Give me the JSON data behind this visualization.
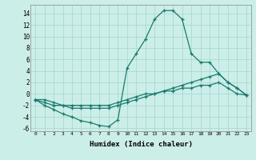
{
  "xlabel": "Humidex (Indice chaleur)",
  "bg_color": "#cceee8",
  "grid_color": "#aad8d4",
  "line_color": "#1a7a6e",
  "xlim": [
    -0.5,
    23.5
  ],
  "ylim": [
    -6.5,
    15.5
  ],
  "xticks": [
    0,
    1,
    2,
    3,
    4,
    5,
    6,
    7,
    8,
    9,
    10,
    11,
    12,
    13,
    14,
    15,
    16,
    17,
    18,
    19,
    20,
    21,
    22,
    23
  ],
  "yticks": [
    -6,
    -4,
    -2,
    0,
    2,
    4,
    6,
    8,
    10,
    12,
    14
  ],
  "line1_x": [
    0,
    1,
    2,
    3,
    4,
    5,
    6,
    7,
    8,
    9,
    10,
    11,
    12,
    13,
    14,
    15,
    16,
    17,
    18,
    19,
    20,
    21,
    22,
    23
  ],
  "line1_y": [
    -1.0,
    -2.0,
    -2.7,
    -3.5,
    -4.0,
    -4.7,
    -5.0,
    -5.5,
    -5.7,
    -4.5,
    4.5,
    7.0,
    9.5,
    13.0,
    14.5,
    14.5,
    13.0,
    7.0,
    5.5,
    5.5,
    3.5,
    2.0,
    1.0,
    -0.2
  ],
  "line2_x": [
    0,
    1,
    2,
    3,
    4,
    5,
    6,
    7,
    8,
    9,
    10,
    11,
    12,
    13,
    14,
    15,
    16,
    17,
    18,
    19,
    20,
    21,
    22,
    23
  ],
  "line2_y": [
    -1.0,
    -1.5,
    -2.0,
    -2.0,
    -2.5,
    -2.5,
    -2.5,
    -2.5,
    -2.5,
    -2.0,
    -1.5,
    -1.0,
    -0.5,
    0.0,
    0.5,
    1.0,
    1.5,
    2.0,
    2.5,
    3.0,
    3.5,
    2.0,
    1.0,
    -0.2
  ],
  "line3_x": [
    0,
    1,
    2,
    3,
    4,
    5,
    6,
    7,
    8,
    9,
    10,
    11,
    12,
    13,
    14,
    15,
    16,
    17,
    18,
    19,
    20,
    21,
    22,
    23
  ],
  "line3_y": [
    -1.0,
    -1.0,
    -1.5,
    -2.0,
    -2.0,
    -2.0,
    -2.0,
    -2.0,
    -2.0,
    -1.5,
    -1.0,
    -0.5,
    0.0,
    0.0,
    0.5,
    0.5,
    1.0,
    1.0,
    1.5,
    1.5,
    2.0,
    1.0,
    0.0,
    -0.2
  ]
}
